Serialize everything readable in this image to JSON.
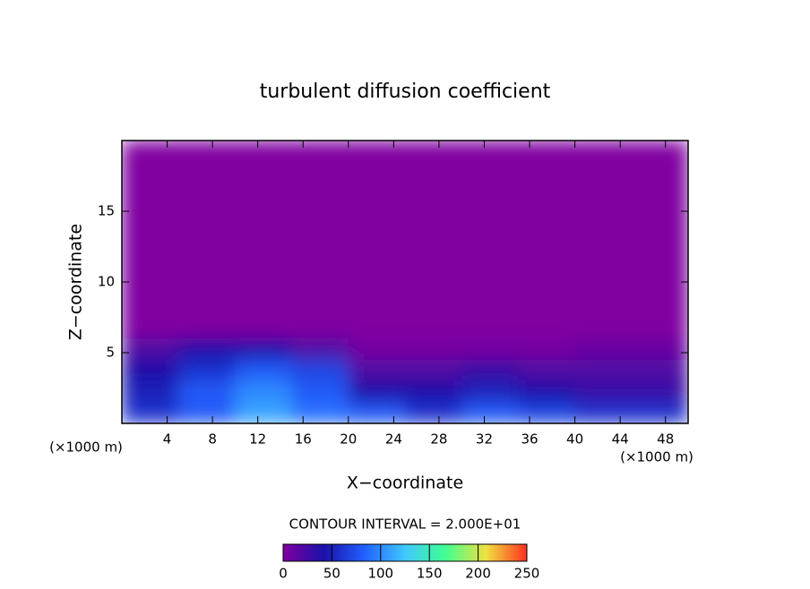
{
  "chart_data": {
    "type": "contour",
    "title": "turbulent diffusion coefficient",
    "x_label": "X−coordinate",
    "y_label": "Z−coordinate",
    "x_unit_left": "(×1000 m)",
    "x_unit_right": "(×1000 m)",
    "annotation": "CONTOUR INTERVAL = 2.000E+01",
    "xlim": [
      0,
      50
    ],
    "xticks": [
      4,
      8,
      12,
      16,
      20,
      24,
      28,
      32,
      36,
      40,
      44,
      48
    ],
    "ylim": [
      0,
      20
    ],
    "yticks": [
      5,
      10,
      15
    ],
    "xbins": [
      0,
      5,
      10,
      15,
      20,
      25,
      30,
      35,
      40,
      45,
      50
    ],
    "ybins": [
      0,
      1.5,
      3,
      4.5,
      6,
      20
    ],
    "z": [
      [
        60,
        80,
        110,
        90,
        80,
        60,
        80,
        70,
        60,
        60
      ],
      [
        50,
        80,
        100,
        80,
        40,
        40,
        50,
        40,
        30,
        30
      ],
      [
        40,
        60,
        80,
        70,
        20,
        20,
        30,
        20,
        20,
        20
      ],
      [
        20,
        40,
        40,
        20,
        5,
        5,
        5,
        5,
        10,
        10
      ],
      [
        0,
        0,
        0,
        0,
        0,
        0,
        0,
        0,
        0,
        0
      ]
    ],
    "colorbar_lim": [
      0,
      250
    ],
    "colorbar_ticks": [
      0,
      50,
      100,
      150,
      200,
      250
    ],
    "colorscale": [
      "#8000a0",
      "#1a10a8",
      "#2060ff",
      "#40c8ff",
      "#40ff90",
      "#f0e040",
      "#ff3020"
    ]
  }
}
